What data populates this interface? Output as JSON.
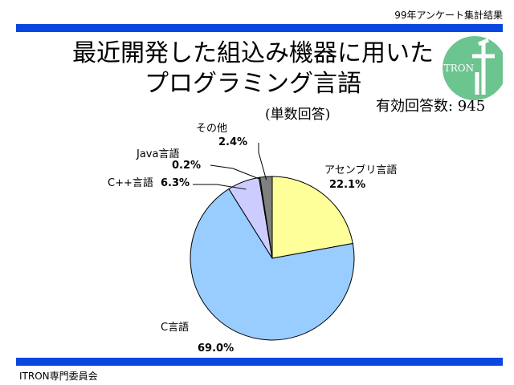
{
  "header": {
    "note": "99年アンケート集計結果"
  },
  "title": {
    "line1": "最近開発した組込み機器に用いた",
    "line2": "プログラミング言語"
  },
  "subtitle": "(単数回答)",
  "responses": "有効回答数: 945",
  "logo_text": "ITRON",
  "footer": "ITRON専門委員会",
  "colors": {
    "bar": "#0a47e0",
    "logo_green": "#6cc48f"
  },
  "chart_data": {
    "type": "pie",
    "title": "最近開発した組込み機器に用いたプログラミング言語",
    "slices": [
      {
        "name": "アセンブリ言語",
        "value": 22.1,
        "label": "22.1%",
        "color": "#ffff99"
      },
      {
        "name": "C言語",
        "value": 69.0,
        "label": "69.0%",
        "color": "#99ccff"
      },
      {
        "name": "C++言語",
        "value": 6.3,
        "label": "6.3%",
        "color": "#ccccff"
      },
      {
        "name": "Java言語",
        "value": 0.2,
        "label": "0.2%",
        "color": "#ffffff"
      },
      {
        "name": "その他",
        "value": 2.4,
        "label": "2.4%",
        "color": "#808080"
      }
    ],
    "legend": "none"
  }
}
